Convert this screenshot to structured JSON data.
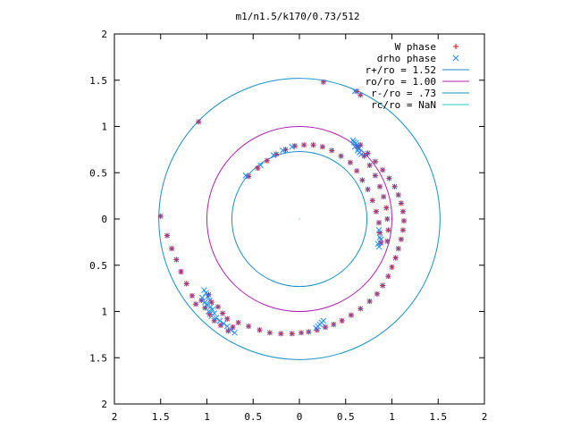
{
  "chart_data": {
    "type": "scatter",
    "title": "m1/n1.5/k170/0.73/512",
    "xlim": [
      -2,
      2
    ],
    "ylim": [
      -2,
      2
    ],
    "x_ticks": [
      -2,
      -1.5,
      -1,
      -0.5,
      0,
      0.5,
      1,
      1.5,
      2
    ],
    "y_ticks": [
      -2,
      -1.5,
      -1,
      -0.5,
      0,
      0.5,
      1,
      1.5,
      2
    ],
    "x_tick_labels": [
      "2",
      "1.5",
      "1",
      "0.5",
      "0",
      "0.5",
      "1",
      "1.5",
      "2"
    ],
    "y_tick_labels": [
      "2",
      "1.5",
      "1",
      "0.5",
      "0",
      "0.5",
      "1",
      "1.5",
      "2"
    ],
    "grid": false,
    "legend_position": "top-right",
    "series": [
      {
        "name": "W phase",
        "marker": "plus",
        "color": "#ff0000",
        "points": [
          [
            0.26,
            1.48
          ],
          [
            -1.09,
            1.05
          ],
          [
            0.62,
            1.38
          ],
          [
            0.66,
            1.34
          ],
          [
            -0.55,
            0.46
          ],
          [
            -0.45,
            0.55
          ],
          [
            -0.35,
            0.63
          ],
          [
            -0.25,
            0.7
          ],
          [
            -0.15,
            0.75
          ],
          [
            -0.05,
            0.79
          ],
          [
            0.05,
            0.8
          ],
          [
            0.15,
            0.8
          ],
          [
            0.25,
            0.78
          ],
          [
            0.35,
            0.74
          ],
          [
            0.45,
            0.68
          ],
          [
            0.55,
            0.61
          ],
          [
            0.62,
            0.52
          ],
          [
            0.68,
            0.42
          ],
          [
            0.74,
            0.32
          ],
          [
            0.79,
            0.2
          ],
          [
            0.83,
            0.08
          ],
          [
            0.86,
            -0.04
          ],
          [
            0.87,
            -0.15
          ],
          [
            0.88,
            -0.26
          ],
          [
            0.63,
            0.78
          ],
          [
            0.7,
            0.68
          ],
          [
            0.76,
            0.58
          ],
          [
            0.82,
            0.47
          ],
          [
            0.87,
            0.35
          ],
          [
            0.91,
            0.24
          ],
          [
            0.94,
            0.12
          ],
          [
            0.95,
            0.0
          ],
          [
            0.96,
            -0.12
          ],
          [
            0.95,
            -0.24
          ],
          [
            0.66,
            0.8
          ],
          [
            0.74,
            0.71
          ],
          [
            0.82,
            0.62
          ],
          [
            0.9,
            0.53
          ],
          [
            0.97,
            0.44
          ],
          [
            1.03,
            0.35
          ],
          [
            1.07,
            0.26
          ],
          [
            1.1,
            0.17
          ],
          [
            1.12,
            0.08
          ],
          [
            1.13,
            -0.02
          ],
          [
            1.12,
            -0.12
          ],
          [
            1.1,
            -0.22
          ],
          [
            1.07,
            -0.32
          ],
          [
            1.04,
            -0.42
          ],
          [
            1.0,
            -0.52
          ],
          [
            0.96,
            -0.62
          ],
          [
            0.9,
            -0.72
          ],
          [
            0.84,
            -0.81
          ],
          [
            0.76,
            -0.89
          ],
          [
            0.66,
            -0.97
          ],
          [
            0.56,
            -1.04
          ],
          [
            0.46,
            -1.1
          ],
          [
            0.37,
            -1.14
          ],
          [
            0.28,
            -1.17
          ],
          [
            0.19,
            -1.2
          ],
          [
            0.1,
            -1.22
          ],
          [
            0.02,
            -1.23
          ],
          [
            -0.08,
            -1.24
          ],
          [
            -0.2,
            -1.24
          ],
          [
            -0.32,
            -1.23
          ],
          [
            -0.43,
            -1.2
          ],
          [
            -0.55,
            -1.16
          ],
          [
            -0.66,
            -1.12
          ],
          [
            -0.72,
            -1.17
          ],
          [
            -0.77,
            -1.21
          ],
          [
            -0.85,
            -1.15
          ],
          [
            -0.92,
            -1.1
          ],
          [
            -0.97,
            -1.03
          ],
          [
            -1.02,
            -0.96
          ],
          [
            -1.06,
            -0.88
          ],
          [
            -1.12,
            -0.92
          ],
          [
            -1.16,
            -0.83
          ],
          [
            -1.22,
            -0.7
          ],
          [
            -1.28,
            -0.57
          ],
          [
            -1.33,
            -0.44
          ],
          [
            -1.38,
            -0.32
          ],
          [
            -1.43,
            -0.18
          ],
          [
            -1.5,
            0.03
          ],
          [
            -0.98,
            -0.82
          ],
          [
            -0.95,
            -0.9
          ],
          [
            -0.88,
            -0.95
          ],
          [
            -0.83,
            -1.02
          ],
          [
            -0.78,
            -1.08
          ]
        ]
      },
      {
        "name": "drho phase",
        "marker": "cross",
        "color": "#1e90ff",
        "points": [
          [
            -0.58,
            0.47
          ],
          [
            -0.42,
            0.58
          ],
          [
            -0.28,
            0.69
          ],
          [
            -0.18,
            0.74
          ],
          [
            -0.08,
            0.78
          ],
          [
            0.58,
            0.85
          ],
          [
            0.59,
            0.83
          ],
          [
            0.61,
            0.82
          ],
          [
            0.62,
            0.8
          ],
          [
            0.6,
            0.78
          ],
          [
            0.64,
            0.76
          ],
          [
            0.63,
            0.74
          ],
          [
            0.65,
            0.72
          ],
          [
            0.67,
            0.7
          ],
          [
            0.6,
            1.38
          ],
          [
            0.86,
            -0.12
          ],
          [
            0.87,
            -0.2
          ],
          [
            0.85,
            -0.27
          ],
          [
            0.88,
            -0.22
          ],
          [
            0.86,
            -0.3
          ],
          [
            0.2,
            -1.16
          ],
          [
            0.22,
            -1.14
          ],
          [
            0.24,
            -1.12
          ],
          [
            0.18,
            -1.18
          ],
          [
            0.26,
            -1.1
          ],
          [
            -1.03,
            -0.77
          ],
          [
            -1.01,
            -0.8
          ],
          [
            -0.99,
            -0.84
          ],
          [
            -0.97,
            -0.88
          ],
          [
            -1.02,
            -0.9
          ],
          [
            -1.0,
            -0.93
          ],
          [
            -0.96,
            -0.95
          ],
          [
            -0.94,
            -0.98
          ],
          [
            -0.92,
            -1.02
          ],
          [
            -0.95,
            -1.05
          ],
          [
            -0.9,
            -1.07
          ],
          [
            -0.86,
            -1.1
          ],
          [
            -0.82,
            -1.13
          ],
          [
            -0.78,
            -1.16
          ],
          [
            -0.74,
            -1.2
          ],
          [
            -0.7,
            -1.23
          ],
          [
            -1.05,
            -0.85
          ],
          [
            -0.98,
            -1.0
          ]
        ]
      }
    ],
    "circles": [
      {
        "label": "r+/ro = 1.52",
        "radius": 1.52,
        "color": "#1a8fc8"
      },
      {
        "label": "ro/ro = 1.00",
        "radius": 1.0,
        "color": "#b020b0"
      },
      {
        "label": "r-/ro = .73",
        "radius": 0.73,
        "color": "#1a8fc8"
      },
      {
        "label": "rc/ro = NaN",
        "radius": null,
        "color": "#22cccc"
      }
    ]
  }
}
